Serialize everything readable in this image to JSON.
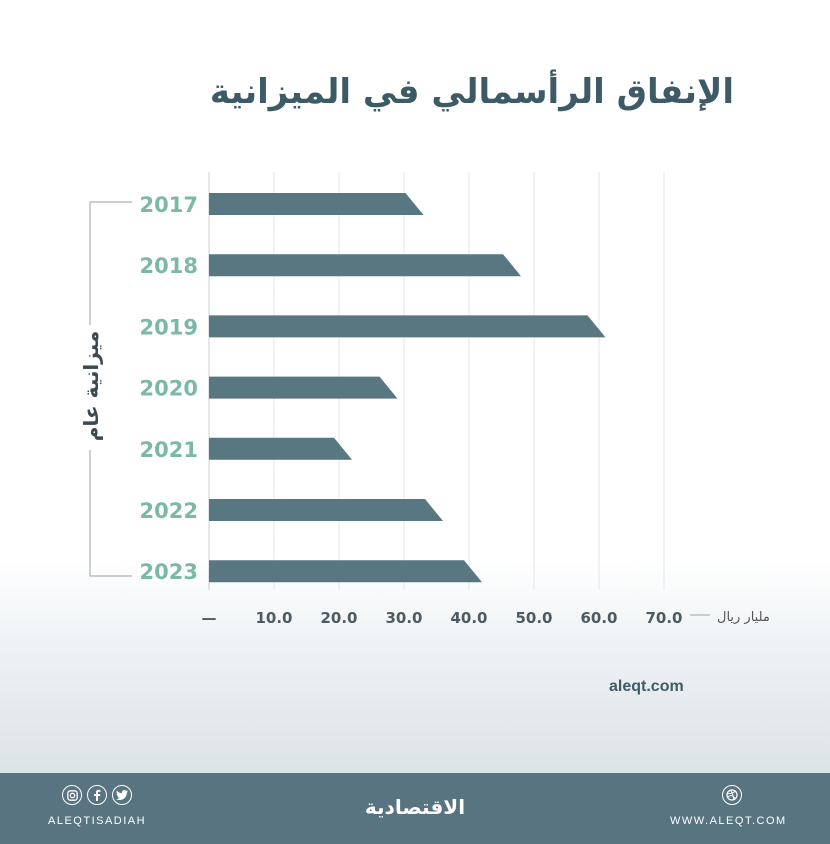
{
  "title": "الإنفاق الرأسمالي في الميزانية",
  "chart_data": {
    "type": "bar",
    "orientation": "horizontal",
    "ylabel": "ميزانية عام",
    "unit_label": "مليار ريال",
    "categories": [
      "2017",
      "2018",
      "2019",
      "2020",
      "2021",
      "2022",
      "2023"
    ],
    "values": [
      33.0,
      48.0,
      61.0,
      29.0,
      22.0,
      36.0,
      42.0
    ],
    "xticks": [
      "—",
      "10.0",
      "20.0",
      "30.0",
      "40.0",
      "50.0",
      "60.0",
      "70.0"
    ],
    "xlim": [
      0,
      70
    ],
    "grid": true,
    "bar_color": "#587781",
    "label_color": "#7bb8a8"
  },
  "footer": {
    "handle": "ALEQTISADIAH",
    "brand": "الاقتصادية",
    "url": "WWW.ALEQT.COM",
    "site": "aleqt.com",
    "icons": [
      "instagram-icon",
      "facebook-icon",
      "twitter-icon",
      "dribbble-icon"
    ]
  },
  "colors": {
    "footer_bg": "#587480",
    "title": "#3d5b66"
  }
}
